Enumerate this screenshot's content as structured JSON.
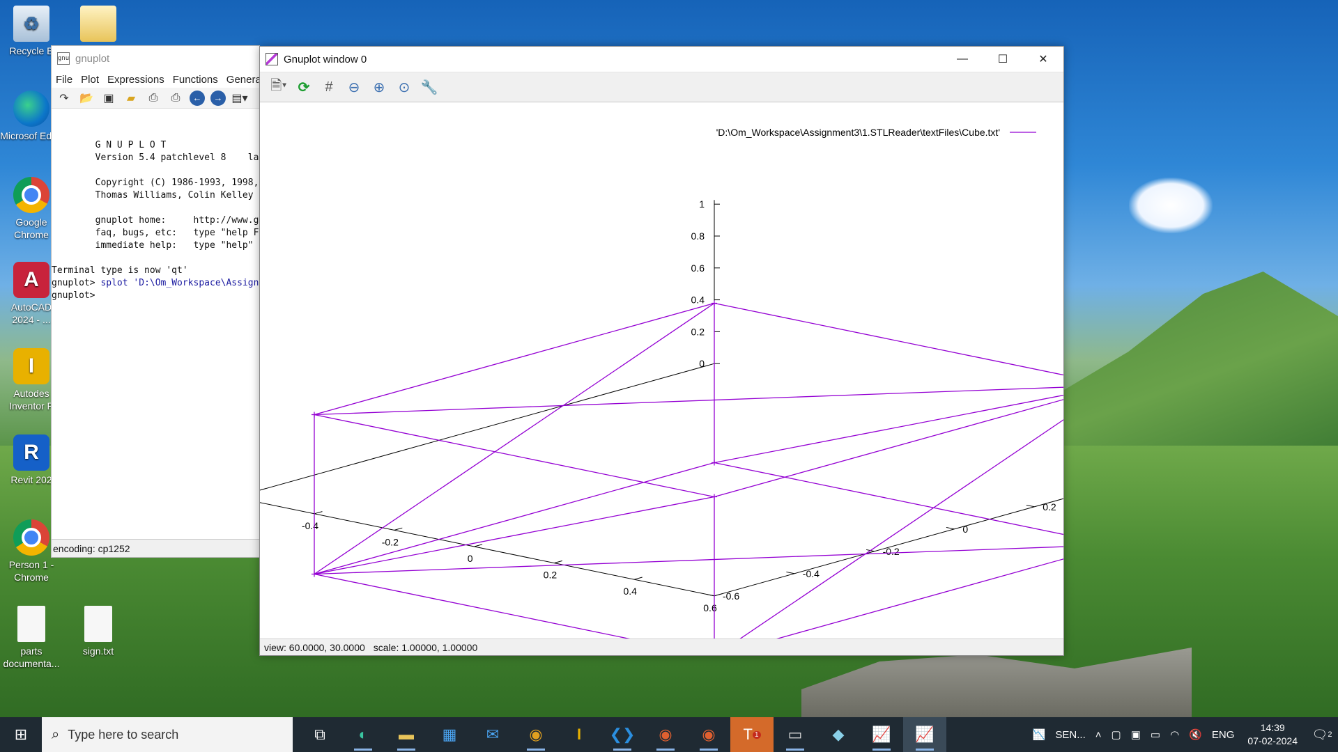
{
  "desktop": {
    "icons": [
      {
        "label": "Recycle B",
        "icon": "recycle-bin-icon"
      },
      {
        "label": "",
        "icon": "folder-icon"
      },
      {
        "label": "Microsof Edge",
        "icon": "edge-icon"
      },
      {
        "label": "Google Chrome",
        "icon": "chrome-icon"
      },
      {
        "label": "AutoCAD 2024 - ...",
        "icon": "autocad-icon",
        "badge": "CAD",
        "glyph": "A"
      },
      {
        "label": "Autodes Inventor P",
        "icon": "inventor-icon",
        "badge": "PRO",
        "glyph": "I"
      },
      {
        "label": "Revit 202",
        "icon": "revit-icon",
        "badge": "RVT",
        "glyph": "R"
      },
      {
        "label": "Person 1 - Chrome",
        "icon": "chrome-profile-icon"
      },
      {
        "label": "parts documenta...",
        "icon": "file-icon"
      },
      {
        "label": "sign.txt",
        "icon": "text-file-icon"
      }
    ]
  },
  "console": {
    "title": "gnuplot",
    "menu": [
      "File",
      "Plot",
      "Expressions",
      "Functions",
      "Genera"
    ],
    "lines": {
      "l1": "        G N U P L O T",
      "l2": "        Version 5.4 patchlevel 8    la",
      "l3": "        Copyright (C) 1986-1993, 1998,",
      "l4": "        Thomas Williams, Colin Kelley",
      "l5": "        gnuplot home:     http://www.g",
      "l6": "        faq, bugs, etc:   type \"help F",
      "l7": "        immediate help:   type \"help\"",
      "l8": "Terminal type is now 'qt'",
      "p1": "gnuplot> ",
      "cmd": "splot 'D:\\Om_Workspace\\Assign",
      "p2": "gnuplot>"
    },
    "status": "encoding: cp1252"
  },
  "plot_window": {
    "title": "Gnuplot window 0",
    "status": {
      "view": "view:  60.0000,  30.0000",
      "scale": "scale:  1.00000,  1.00000"
    }
  },
  "chart_data": {
    "type": "line",
    "subtype": "3d-wireframe",
    "series": [
      {
        "name": "'D:\\Om_Workspace\\Assignment3\\1.STLReader\\textFiles\\Cube.txt'",
        "color": "#9400d3"
      }
    ],
    "vertices": [
      [
        -0.5,
        -0.5,
        -0.5
      ],
      [
        0.5,
        -0.5,
        -0.5
      ],
      [
        0.5,
        0.5,
        -0.5
      ],
      [
        -0.5,
        0.5,
        -0.5
      ],
      [
        -0.5,
        -0.5,
        0.5
      ],
      [
        0.5,
        -0.5,
        0.5
      ],
      [
        0.5,
        0.5,
        0.5
      ],
      [
        -0.5,
        0.5,
        0.5
      ]
    ],
    "edges": [
      [
        0,
        1
      ],
      [
        1,
        2
      ],
      [
        2,
        3
      ],
      [
        3,
        0
      ],
      [
        4,
        5
      ],
      [
        5,
        6
      ],
      [
        6,
        7
      ],
      [
        7,
        4
      ],
      [
        0,
        4
      ],
      [
        1,
        5
      ],
      [
        2,
        6
      ],
      [
        3,
        7
      ],
      [
        0,
        2
      ],
      [
        4,
        6
      ],
      [
        0,
        5
      ],
      [
        3,
        6
      ],
      [
        0,
        7
      ],
      [
        1,
        6
      ]
    ],
    "xlim": [
      -0.6,
      0.6
    ],
    "ylim": [
      -0.6,
      0.6
    ],
    "zlim": [
      0,
      1
    ],
    "x_ticks": [
      "-0.6",
      "-0.4",
      "-0.2",
      "0",
      "0.2",
      "0.4",
      "0.6"
    ],
    "y_ticks": [
      "-0.6",
      "-0.4",
      "-0.2",
      "0",
      "0.2",
      "0.4",
      "0.6"
    ],
    "z_ticks": [
      "0",
      "0.2",
      "0.4",
      "0.6",
      "0.8",
      "1"
    ],
    "view": [
      60,
      30
    ],
    "legend": "top-right"
  },
  "taskbar": {
    "search_placeholder": "Type here to search",
    "tray_label": "SEN...",
    "lang": "ENG",
    "time": "14:39",
    "date": "07-02-2024",
    "notifications": "2",
    "teams_badge": "1"
  }
}
